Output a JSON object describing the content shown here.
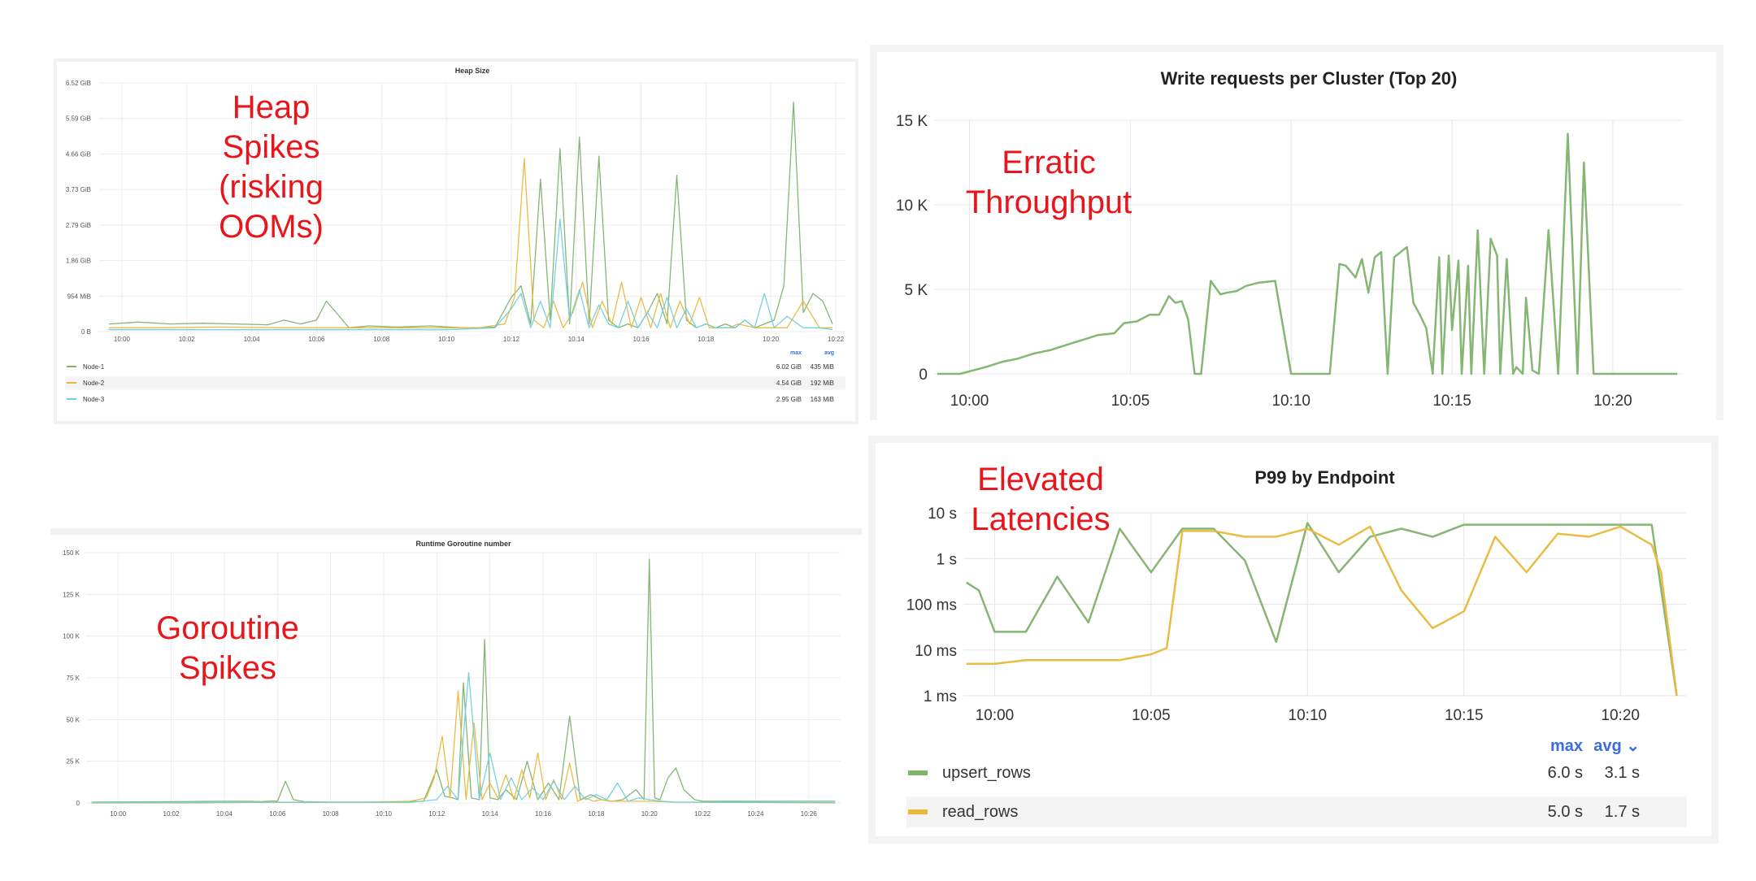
{
  "annotations": {
    "heap": "Heap\nSpikes\n(risking\nOOMs)",
    "throughput": "Erratic\nThroughput",
    "latency": "Elevated\nLatencies",
    "goroutine": "Goroutine\nSpikes"
  },
  "legend_headers": {
    "max": "max",
    "avg": "avg"
  },
  "chart_data": [
    {
      "type": "line",
      "title": "Heap Size",
      "xlabel": "",
      "ylabel": "",
      "unit": "GiB",
      "x_ticks": [
        "10:00",
        "10:02",
        "10:04",
        "10:06",
        "10:08",
        "10:10",
        "10:12",
        "10:14",
        "10:16",
        "10:18",
        "10:20",
        "10:22"
      ],
      "y_ticks": [
        "0 B",
        "954 MiB",
        "1.86 GiB",
        "2.79 GiB",
        "3.73 GiB",
        "4.66 GiB",
        "5.59 GiB",
        "6.52 GiB"
      ],
      "ylim": [
        0,
        6.52
      ],
      "xlim": [
        -0.7,
        22.3
      ],
      "grid": true,
      "legend_position": "bottom",
      "series": [
        {
          "name": "Node-1",
          "color": "#7eb26d",
          "max": "6.02 GiB",
          "avg": "435 MiB",
          "x": [
            -0.4,
            0.5,
            1.5,
            2.5,
            3.5,
            4.5,
            5.0,
            5.5,
            6.0,
            6.3,
            6.6,
            7.0,
            7.6,
            8.5,
            9.5,
            10.5,
            11.0,
            11.5,
            12.0,
            12.3,
            12.6,
            12.9,
            13.2,
            13.5,
            13.8,
            14.1,
            14.4,
            14.7,
            15.0,
            15.3,
            15.6,
            15.9,
            16.2,
            16.5,
            16.8,
            17.1,
            17.4,
            17.7,
            18.0,
            18.3,
            18.6,
            18.9,
            19.2,
            19.5,
            19.8,
            20.1,
            20.4,
            20.7,
            21.0,
            21.3,
            21.6,
            21.9
          ],
          "y": [
            0.2,
            0.25,
            0.2,
            0.22,
            0.2,
            0.18,
            0.3,
            0.2,
            0.3,
            0.8,
            0.5,
            0.1,
            0.15,
            0.12,
            0.15,
            0.1,
            0.1,
            0.12,
            0.9,
            1.2,
            0.2,
            4.0,
            0.3,
            4.8,
            0.2,
            5.1,
            0.2,
            4.6,
            0.3,
            0.1,
            0.2,
            0.1,
            0.5,
            1.0,
            0.2,
            4.1,
            0.3,
            0.1,
            0.2,
            0.1,
            0.2,
            0.1,
            0.3,
            0.1,
            0.2,
            0.3,
            1.2,
            6.02,
            0.5,
            1.0,
            0.8,
            0.2
          ]
        },
        {
          "name": "Node-2",
          "color": "#eab839",
          "max": "4.54 GiB",
          "avg": "192 MiB",
          "x": [
            -0.4,
            1,
            3,
            5,
            7,
            9,
            11,
            11.8,
            12.1,
            12.4,
            12.7,
            13.0,
            13.3,
            13.6,
            13.9,
            14.2,
            14.5,
            14.8,
            15.1,
            15.4,
            15.7,
            16.0,
            16.3,
            16.6,
            16.9,
            17.2,
            17.5,
            17.8,
            18.1,
            18.4,
            18.7,
            19.0,
            19.5,
            20.0,
            20.5,
            21.0,
            21.5,
            21.9
          ],
          "y": [
            0.1,
            0.1,
            0.12,
            0.1,
            0.1,
            0.1,
            0.1,
            0.2,
            0.9,
            4.54,
            0.3,
            0.1,
            0.8,
            0.1,
            0.5,
            1.3,
            0.1,
            0.8,
            0.2,
            1.3,
            0.1,
            0.9,
            0.1,
            1.0,
            0.1,
            0.8,
            0.2,
            0.9,
            0.1,
            0.1,
            0.1,
            0.2,
            0.1,
            0.1,
            0.1,
            0.8,
            0.1,
            0.1
          ]
        },
        {
          "name": "Node-3",
          "color": "#6ed0e0",
          "max": "2.95 GiB",
          "avg": "163 MiB",
          "x": [
            -0.4,
            2,
            4,
            6,
            8,
            10,
            11.5,
            12.0,
            12.3,
            12.6,
            12.9,
            13.2,
            13.5,
            13.8,
            14.1,
            14.4,
            14.7,
            15.0,
            15.3,
            15.6,
            15.9,
            16.2,
            16.5,
            16.8,
            17.1,
            17.4,
            17.7,
            18.0,
            18.3,
            18.6,
            18.9,
            19.2,
            19.5,
            19.8,
            20.1,
            20.5,
            21.0,
            21.5,
            21.9
          ],
          "y": [
            0.05,
            0.05,
            0.05,
            0.05,
            0.05,
            0.05,
            0.1,
            0.6,
            1.0,
            0.1,
            0.8,
            0.1,
            2.95,
            0.3,
            1.1,
            0.1,
            0.7,
            0.2,
            0.1,
            0.8,
            0.1,
            0.5,
            0.1,
            0.9,
            0.1,
            0.6,
            0.1,
            0.2,
            0.1,
            0.1,
            0.1,
            0.3,
            0.1,
            1.0,
            0.1,
            0.4,
            0.1,
            0.1,
            0.05
          ]
        }
      ]
    },
    {
      "type": "line",
      "title": "Write requests per Cluster (Top 20)",
      "xlabel": "",
      "ylabel": "",
      "x_ticks": [
        "10:00",
        "10:05",
        "10:10",
        "10:15",
        "10:20"
      ],
      "y_ticks": [
        "0",
        "5 K",
        "10 K",
        "15 K"
      ],
      "ylim": [
        0,
        15000
      ],
      "xlim": [
        -1.1,
        22.2
      ],
      "grid": true,
      "series": [
        {
          "color": "#7eb26d",
          "x": [
            -1.0,
            -0.3,
            0.5,
            1.0,
            1.5,
            2.0,
            2.5,
            3.0,
            3.5,
            4.0,
            4.5,
            4.8,
            5.2,
            5.6,
            5.9,
            6.2,
            6.4,
            6.6,
            6.8,
            7.0,
            7.2,
            7.5,
            7.8,
            8.0,
            8.3,
            8.6,
            9.0,
            9.5,
            10.0,
            10.5,
            10.8,
            11.2,
            11.5,
            11.7,
            12.0,
            12.2,
            12.4,
            12.6,
            12.8,
            13.0,
            13.2,
            13.4,
            13.6,
            13.8,
            14.0,
            14.2,
            14.4,
            14.6,
            14.7,
            14.9,
            15.0,
            15.2,
            15.3,
            15.5,
            15.6,
            15.8,
            16.0,
            16.2,
            16.4,
            16.5,
            16.7,
            16.9,
            17.0,
            17.2,
            17.3,
            17.5,
            17.7,
            18.0,
            18.3,
            18.6,
            18.9,
            19.1,
            19.4,
            19.6,
            19.8,
            20.0,
            20.3,
            20.5,
            20.7,
            20.9,
            21.1,
            21.3,
            21.5,
            21.7,
            22.0
          ],
          "y": [
            0,
            0,
            400,
            700,
            900,
            1200,
            1400,
            1700,
            2000,
            2300,
            2400,
            3000,
            3100,
            3500,
            3500,
            4600,
            4200,
            4300,
            3200,
            0,
            0,
            5500,
            4700,
            4800,
            4900,
            5200,
            5400,
            5500,
            0,
            0,
            0,
            0,
            6500,
            6400,
            5700,
            6800,
            4800,
            6900,
            7200,
            0,
            6900,
            7200,
            7500,
            4200,
            3500,
            2700,
            0,
            6900,
            0,
            7000,
            2600,
            6700,
            0,
            6400,
            0,
            8500,
            0,
            8000,
            7000,
            0,
            6800,
            0,
            400,
            0,
            4500,
            200,
            0,
            8500,
            0,
            14200,
            0,
            12500,
            0,
            0,
            0,
            0,
            0,
            0,
            0,
            0,
            0,
            0,
            0,
            0,
            0
          ]
        }
      ]
    },
    {
      "type": "line",
      "title": "P99 by Endpoint",
      "xlabel": "",
      "ylabel": "",
      "scale": "log",
      "unit": "s",
      "x_ticks": [
        "10:00",
        "10:05",
        "10:10",
        "10:15",
        "10:20"
      ],
      "y_ticks": [
        "1 ms",
        "10 ms",
        "100 ms",
        "1 s",
        "10 s"
      ],
      "ylim": [
        0.001,
        10
      ],
      "xlim": [
        -1.0,
        22.1
      ],
      "grid": true,
      "legend_position": "bottom",
      "series": [
        {
          "name": "upsert_rows",
          "color": "#7eb26d",
          "max": "6.0 s",
          "avg": "3.1 s",
          "x": [
            -0.9,
            -0.5,
            0.0,
            1.0,
            2.0,
            3.0,
            4.0,
            5.0,
            6.0,
            7.0,
            8.0,
            9.0,
            10.0,
            11.0,
            12.0,
            13.0,
            14.0,
            15.0,
            16.0,
            17.0,
            18.0,
            19.0,
            20.0,
            21.0,
            21.8
          ],
          "y": [
            0.3,
            0.2,
            0.025,
            0.025,
            0.4,
            0.04,
            4.5,
            0.5,
            4.5,
            4.5,
            0.9,
            0.015,
            6.0,
            0.5,
            3.0,
            4.5,
            3.0,
            5.5,
            5.5,
            5.5,
            5.5,
            5.5,
            5.5,
            5.5,
            0.001
          ]
        },
        {
          "name": "read_rows",
          "color": "#eab839",
          "max": "5.0 s",
          "avg": "1.7 s",
          "x": [
            -0.9,
            0.0,
            1.0,
            2.0,
            3.0,
            4.0,
            4.5,
            5.0,
            5.5,
            6.0,
            7.0,
            8.0,
            9.0,
            10.0,
            11.0,
            12.0,
            13.0,
            14.0,
            15.0,
            16.0,
            17.0,
            18.0,
            19.0,
            20.0,
            21.0,
            21.3,
            21.8
          ],
          "y": [
            0.005,
            0.005,
            0.006,
            0.006,
            0.006,
            0.006,
            0.007,
            0.008,
            0.011,
            4.0,
            4.0,
            3.0,
            3.0,
            4.5,
            2.0,
            5.0,
            0.2,
            0.03,
            0.07,
            3.0,
            0.5,
            3.5,
            3.0,
            5.0,
            2.0,
            0.5,
            0.001
          ]
        }
      ]
    },
    {
      "type": "line",
      "title": "Runtime Goroutine number",
      "xlabel": "",
      "ylabel": "",
      "x_ticks": [
        "10:00",
        "10:02",
        "10:04",
        "10:06",
        "10:08",
        "10:10",
        "10:12",
        "10:14",
        "10:16",
        "10:18",
        "10:20",
        "10:22",
        "10:24",
        "10:26"
      ],
      "y_ticks": [
        "0",
        "25 K",
        "50 K",
        "75 K",
        "100 K",
        "125 K",
        "150 K"
      ],
      "ylim": [
        0,
        150000
      ],
      "xlim": [
        -1.2,
        27.2
      ],
      "grid": true,
      "series": [
        {
          "color": "#7eb26d",
          "x": [
            -1,
            2,
            4,
            5,
            5.4,
            5.8,
            6.0,
            6.3,
            6.6,
            7.0,
            8,
            10,
            11.5,
            12.0,
            12.3,
            12.6,
            12.8,
            13.0,
            13.3,
            13.6,
            13.8,
            14.0,
            14.3,
            14.6,
            15.0,
            15.4,
            15.8,
            16.2,
            16.6,
            17.0,
            17.4,
            17.8,
            18.2,
            18.6,
            19.0,
            19.5,
            19.8,
            20.0,
            20.2,
            20.4,
            20.7,
            21.0,
            21.3,
            21.7,
            22,
            24,
            26,
            27
          ],
          "y": [
            500,
            800,
            1000,
            1000,
            800,
            1200,
            1000,
            13000,
            2000,
            800,
            500,
            500,
            1000,
            20000,
            4000,
            3000,
            2000,
            72000,
            3000,
            2000,
            98000,
            3000,
            2000,
            8000,
            2000,
            25000,
            2000,
            12000,
            2000,
            52000,
            2000,
            5000,
            2000,
            1000,
            2000,
            8000,
            2000,
            146000,
            3000,
            2000,
            15000,
            21000,
            8000,
            2000,
            1000,
            1000,
            1000,
            1000
          ]
        },
        {
          "color": "#eab839",
          "x": [
            -1,
            3,
            6,
            9,
            11,
            11.6,
            11.9,
            12.2,
            12.5,
            12.8,
            13.1,
            13.4,
            13.7,
            14.0,
            14.3,
            14.6,
            14.9,
            15.2,
            15.5,
            15.8,
            16.1,
            16.4,
            16.7,
            17.0,
            17.3,
            17.6,
            17.9,
            18.2,
            18.5,
            19,
            20,
            21,
            22,
            27
          ],
          "y": [
            0,
            0,
            500,
            500,
            1000,
            3000,
            15000,
            40000,
            3000,
            67000,
            2000,
            48000,
            2000,
            12000,
            3000,
            17000,
            2000,
            20000,
            3000,
            30000,
            2000,
            14000,
            2000,
            24000,
            1000,
            3000,
            1000,
            2000,
            1000,
            1000,
            1000,
            500,
            500,
            0
          ]
        },
        {
          "color": "#6ed0e0",
          "x": [
            -1,
            4,
            8,
            11,
            12.0,
            12.4,
            12.8,
            13.2,
            13.6,
            14.0,
            14.4,
            14.8,
            15.2,
            15.6,
            16.0,
            16.4,
            16.8,
            17.2,
            17.6,
            18.0,
            18.4,
            18.8,
            19.2,
            19.6,
            20.0,
            20.5,
            21,
            27
          ],
          "y": [
            200,
            300,
            300,
            400,
            2000,
            10000,
            2000,
            78000,
            2000,
            30000,
            2000,
            15000,
            2000,
            9000,
            2000,
            13000,
            2000,
            10000,
            2000,
            5000,
            2000,
            12000,
            1000,
            3000,
            2000,
            1000,
            500,
            200
          ]
        }
      ]
    }
  ]
}
